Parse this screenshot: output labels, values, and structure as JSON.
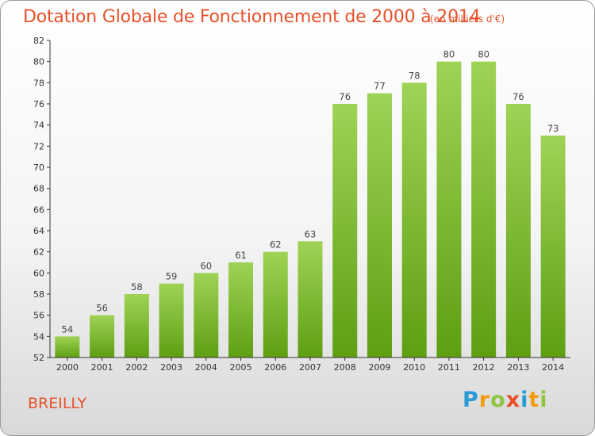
{
  "title": "Dotation Globale de Fonctionnement de 2000 à 2014",
  "subtitle": "(en milliers d'€)",
  "commune": "BREILLY",
  "logo": {
    "letters": [
      "P",
      "r",
      "o",
      "x",
      "i",
      "t",
      "i"
    ],
    "colors": [
      "#2a9ad6",
      "#f39c12",
      "#8cc63f",
      "#e8502a",
      "#2a9ad6",
      "#f39c12",
      "#8cc63f"
    ]
  },
  "colors": {
    "bar_top": "#9fd356",
    "bar_bottom": "#5e9f12",
    "accent": "#e8502a"
  },
  "chart_data": {
    "type": "bar",
    "categories": [
      "2000",
      "2001",
      "2002",
      "2003",
      "2004",
      "2005",
      "2006",
      "2007",
      "2008",
      "2009",
      "2010",
      "2011",
      "2012",
      "2013",
      "2014"
    ],
    "values": [
      54,
      56,
      58,
      59,
      60,
      61,
      62,
      63,
      76,
      77,
      78,
      80,
      80,
      76,
      73
    ],
    "title": "Dotation Globale de Fonctionnement de 2000 à 2014",
    "subtitle": "(en milliers d'€)",
    "ylim": [
      52,
      82
    ],
    "yticks": [
      52,
      54,
      56,
      58,
      60,
      62,
      64,
      66,
      68,
      70,
      72,
      74,
      76,
      78,
      80,
      82
    ],
    "grid": false,
    "data_labels": true
  }
}
